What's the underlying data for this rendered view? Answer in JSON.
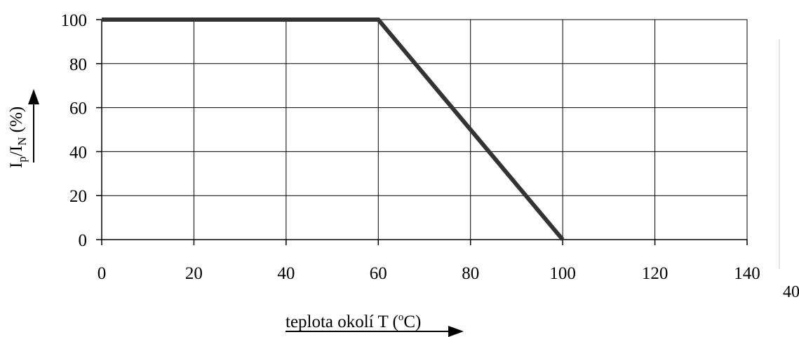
{
  "chart_data": {
    "type": "line",
    "xlabel": {
      "prefix": "teplota okolí T (",
      "superscript": "o",
      "suffix": "C)"
    },
    "ylabel": {
      "part1": "I",
      "sub1": "p",
      "part2": "/I",
      "sub2": "N",
      "part3": " (%)"
    },
    "xlim": [
      0,
      140
    ],
    "ylim": [
      0,
      100
    ],
    "x_ticks": [
      0,
      20,
      40,
      60,
      80,
      100,
      120,
      140
    ],
    "y_ticks": [
      0,
      20,
      40,
      60,
      80,
      100
    ],
    "grid": true,
    "series": [
      {
        "x": [
          0,
          60,
          100
        ],
        "y": [
          100,
          100,
          0
        ],
        "color": "#333333"
      }
    ],
    "stray_label": "40"
  }
}
